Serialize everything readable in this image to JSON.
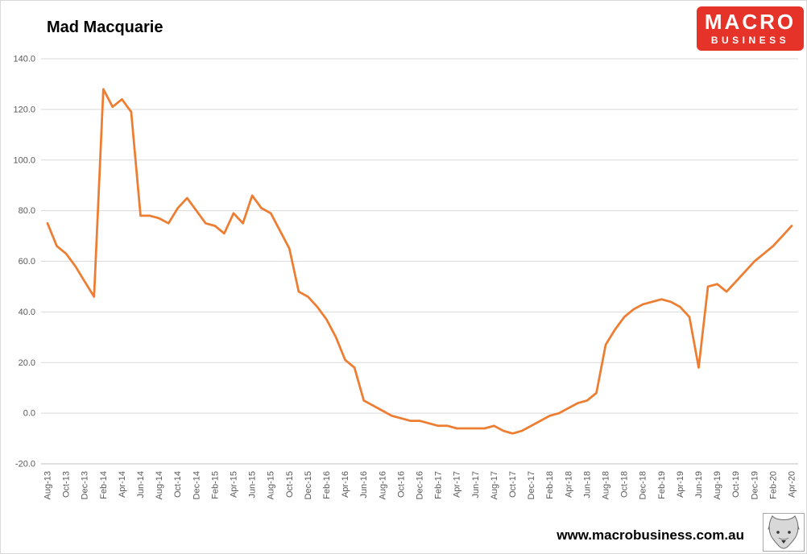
{
  "header": {
    "title": "Mad Macquarie"
  },
  "logo": {
    "line1": "MACRO",
    "line2": "BUSINESS",
    "bg_color": "#e5332a",
    "text_color": "#ffffff"
  },
  "footer": {
    "url": "www.macrobusiness.com.au"
  },
  "chart_data": {
    "type": "line",
    "title": "Mad Macquarie",
    "line_color": "#ED7D31",
    "grid_color": "#d9d9d9",
    "axis_color": "#bfbfbf",
    "grid": true,
    "legend": "none",
    "ylim": [
      -20,
      140
    ],
    "yticks": [
      140,
      120,
      100,
      80,
      60,
      40,
      20,
      0,
      -20
    ],
    "ytick_labels": [
      "140.0",
      "120.0",
      "100.0",
      "80.0",
      "60.0",
      "40.0",
      "20.0",
      "0.0",
      "-20.0"
    ],
    "xtick_every": 2,
    "xtick_labels": [
      "Aug-13",
      "Oct-13",
      "Dec-13",
      "Feb-14",
      "Apr-14",
      "Jun-14",
      "Aug-14",
      "Oct-14",
      "Dec-14",
      "Feb-15",
      "Apr-15",
      "Jun-15",
      "Aug-15",
      "Oct-15",
      "Dec-15",
      "Feb-16",
      "Apr-16",
      "Jun-16",
      "Aug-16",
      "Oct-16",
      "Dec-16",
      "Feb-17",
      "Apr-17",
      "Jun-17",
      "Aug-17",
      "Oct-17",
      "Dec-17",
      "Feb-18",
      "Apr-18",
      "Jun-18",
      "Aug-18",
      "Oct-18",
      "Dec-18",
      "Feb-19",
      "Apr-19",
      "Jun-19",
      "Aug-19",
      "Oct-19",
      "Dec-19",
      "Feb-20",
      "Apr-20"
    ],
    "x": [
      "Aug-13",
      "Sep-13",
      "Oct-13",
      "Nov-13",
      "Dec-13",
      "Jan-14",
      "Feb-14",
      "Mar-14",
      "Apr-14",
      "May-14",
      "Jun-14",
      "Jul-14",
      "Aug-14",
      "Sep-14",
      "Oct-14",
      "Nov-14",
      "Dec-14",
      "Jan-15",
      "Feb-15",
      "Mar-15",
      "Apr-15",
      "May-15",
      "Jun-15",
      "Jul-15",
      "Aug-15",
      "Sep-15",
      "Oct-15",
      "Nov-15",
      "Dec-15",
      "Jan-16",
      "Feb-16",
      "Mar-16",
      "Apr-16",
      "May-16",
      "Jun-16",
      "Jul-16",
      "Aug-16",
      "Sep-16",
      "Oct-16",
      "Nov-16",
      "Dec-16",
      "Jan-17",
      "Feb-17",
      "Mar-17",
      "Apr-17",
      "May-17",
      "Jun-17",
      "Jul-17",
      "Aug-17",
      "Sep-17",
      "Oct-17",
      "Nov-17",
      "Dec-17",
      "Jan-18",
      "Feb-18",
      "Mar-18",
      "Apr-18",
      "May-18",
      "Jun-18",
      "Jul-18",
      "Aug-18",
      "Sep-18",
      "Oct-18",
      "Nov-18",
      "Dec-18",
      "Jan-19",
      "Feb-19",
      "Mar-19",
      "Apr-19",
      "May-19",
      "Jun-19",
      "Jul-19",
      "Aug-19",
      "Sep-19",
      "Oct-19",
      "Nov-19",
      "Dec-19",
      "Jan-20",
      "Feb-20",
      "Mar-20",
      "Apr-20"
    ],
    "values": [
      75,
      66,
      63,
      58,
      52,
      46,
      128,
      121,
      124,
      119,
      78,
      78,
      77,
      75,
      81,
      85,
      80,
      75,
      74,
      71,
      79,
      75,
      86,
      81,
      79,
      72,
      65,
      48,
      46,
      42,
      37,
      30,
      21,
      18,
      5,
      3,
      1,
      -1,
      -2,
      -3,
      -3,
      -4,
      -5,
      -5,
      -6,
      -6,
      -6,
      -6,
      -5,
      -7,
      -8,
      -7,
      -5,
      -3,
      -1,
      0,
      2,
      4,
      5,
      8,
      27,
      33,
      38,
      41,
      43,
      44,
      45,
      44,
      42,
      38,
      18,
      50,
      51,
      48,
      52,
      56,
      60,
      63,
      66,
      70,
      74
    ]
  }
}
